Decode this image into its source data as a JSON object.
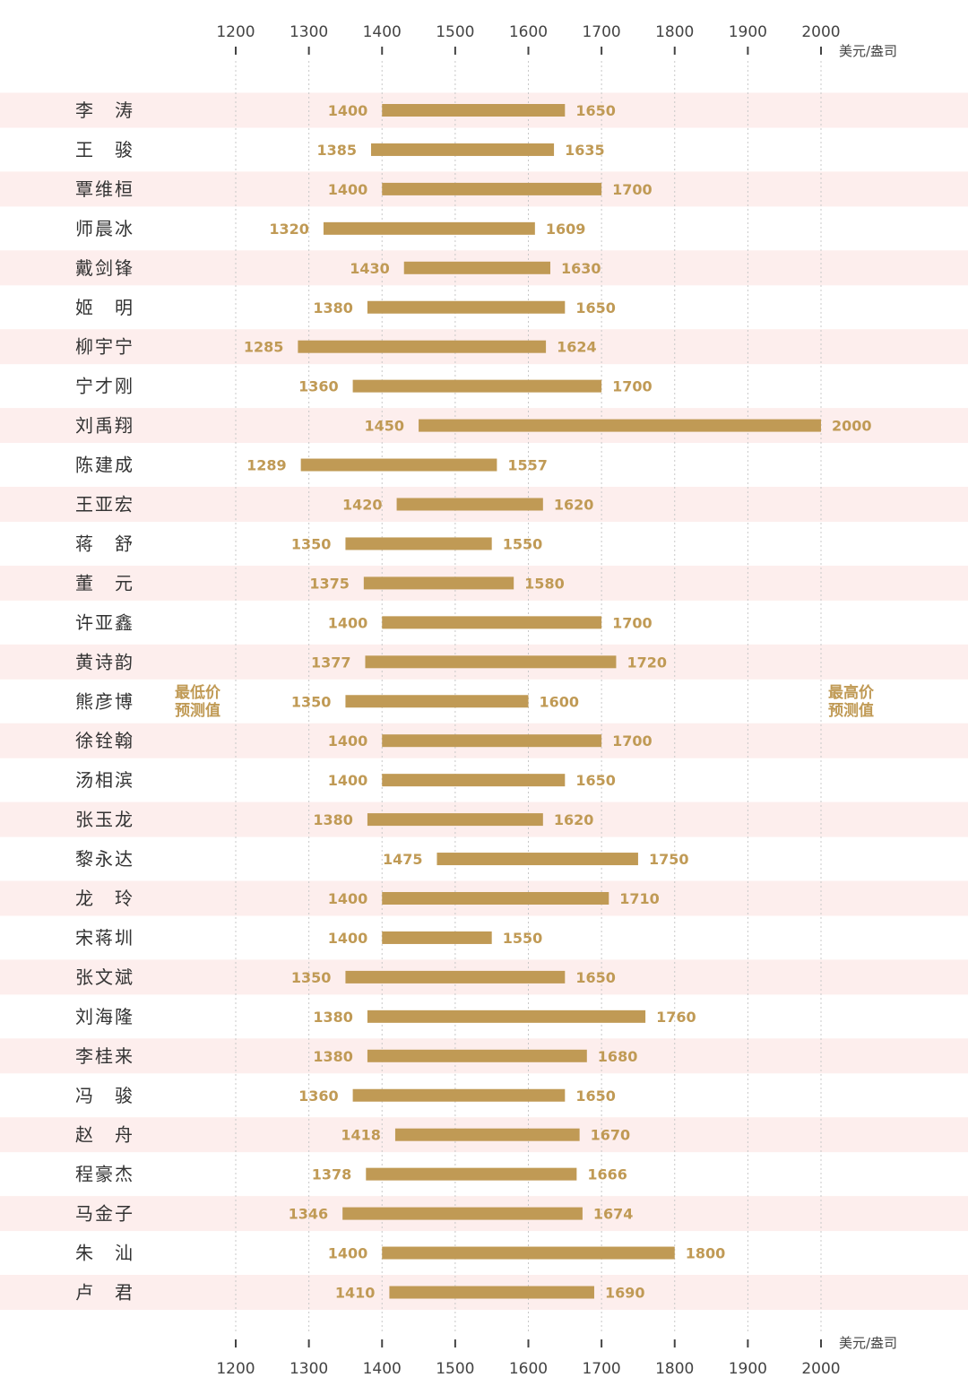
{
  "chart_data": {
    "type": "bar",
    "orientation": "horizontal-range",
    "unit": "美元/盎司",
    "xlim": [
      1200,
      2000
    ],
    "xticks": [
      1200,
      1300,
      1400,
      1500,
      1600,
      1700,
      1800,
      1900,
      2000
    ],
    "annotations": {
      "low": [
        "最低价",
        "预测值"
      ],
      "high": [
        "最高价",
        "预测值"
      ]
    },
    "categories": [
      "李涛",
      "王骏",
      "覃维桓",
      "师晨冰",
      "戴剑锋",
      "姬明",
      "柳宇宁",
      "宁才刚",
      "刘禹翔",
      "陈建成",
      "王亚宏",
      "蒋舒",
      "董元",
      "许亚鑫",
      "黄诗韵",
      "熊彦博",
      "徐铨翰",
      "汤相滨",
      "张玉龙",
      "黎永达",
      "龙玲",
      "宋蒋圳",
      "张文斌",
      "刘海隆",
      "李桂来",
      "冯骏",
      "赵舟",
      "程豪杰",
      "马金子",
      "朱汕",
      "卢君"
    ],
    "series": [
      {
        "name": "最低价预测值",
        "values": [
          1400,
          1385,
          1400,
          1320,
          1430,
          1380,
          1285,
          1360,
          1450,
          1289,
          1420,
          1350,
          1375,
          1400,
          1377,
          1350,
          1400,
          1400,
          1380,
          1475,
          1400,
          1400,
          1350,
          1380,
          1380,
          1360,
          1418,
          1378,
          1346,
          1400,
          1410
        ]
      },
      {
        "name": "最高价预测值",
        "values": [
          1650,
          1635,
          1700,
          1609,
          1630,
          1650,
          1624,
          1700,
          2000,
          1557,
          1620,
          1550,
          1580,
          1700,
          1720,
          1600,
          1700,
          1650,
          1620,
          1750,
          1710,
          1550,
          1650,
          1760,
          1680,
          1650,
          1670,
          1666,
          1674,
          1800,
          1690
        ]
      }
    ],
    "display_names": [
      "李　涛",
      "王　骏",
      "覃维桓",
      "师晨冰",
      "戴剑锋",
      "姬　明",
      "柳宇宁",
      "宁才刚",
      "刘禹翔",
      "陈建成",
      "王亚宏",
      "蒋　舒",
      "董　元",
      "许亚鑫",
      "黄诗韵",
      "熊彦博",
      "徐铨翰",
      "汤相滨",
      "张玉龙",
      "黎永达",
      "龙　玲",
      "宋蒋圳",
      "张文斌",
      "刘海隆",
      "李桂来",
      "冯　骏",
      "赵　舟",
      "程豪杰",
      "马金子",
      "朱　汕",
      "卢　君"
    ],
    "colors": {
      "bar": "#c09a55",
      "band": "#fdeeed",
      "text": "#333333"
    }
  }
}
